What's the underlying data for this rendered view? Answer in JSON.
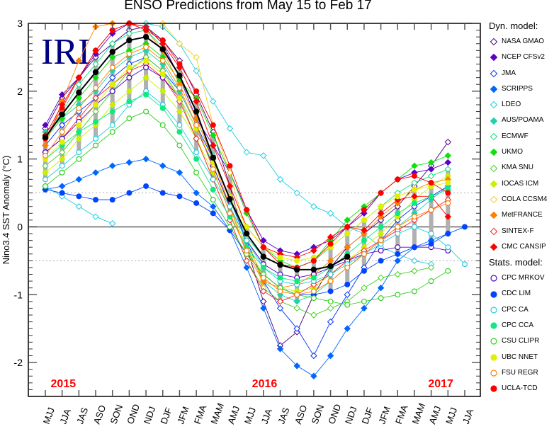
{
  "chart_data": {
    "type": "line",
    "title": "ENSO Predictions from May 15 to Feb 17",
    "xlabel": "",
    "ylabel": "Nino3.4 SST Anomaly (°C)",
    "ylim": [
      -2.5,
      3
    ],
    "yticks": [
      -2,
      -1,
      0,
      1,
      2,
      3
    ],
    "reference_lines": [
      0.5,
      -0.5
    ],
    "watermark": "IRI",
    "categories": [
      "MJJ",
      "JJA",
      "JAS",
      "ASO",
      "SON",
      "OND",
      "NDJ",
      "DJF",
      "JFM",
      "FMA",
      "MAM",
      "AMJ",
      "MJJ",
      "JJA",
      "JAS",
      "ASO",
      "SON",
      "OND",
      "NDJ",
      "DJF",
      "JFM",
      "FMA",
      "MAM",
      "AMJ",
      "MJJ",
      "JJA"
    ],
    "year_labels": [
      {
        "text": "2015",
        "at": 1.5
      },
      {
        "text": "2016",
        "at": 13.5
      },
      {
        "text": "2017",
        "at": 24
      }
    ],
    "average": {
      "name": "Average",
      "color": "#000000",
      "values": [
        1.32,
        1.66,
        1.98,
        2.28,
        2.58,
        2.75,
        2.8,
        2.62,
        2.23,
        1.7,
        1.02,
        0.41,
        -0.1,
        -0.44,
        -0.56,
        -0.63,
        -0.63,
        -0.58,
        -0.44
      ]
    },
    "series": [
      {
        "name": "NASA GMAO",
        "type": "dyn",
        "start": 0,
        "values": [
          1.45,
          1.9,
          2.2,
          2.5,
          2.7,
          2.9,
          2.95,
          2.75,
          2.45,
          1.95,
          1.4,
          0.6,
          -0.3,
          -1.1,
          -1.75,
          -1.55,
          -1.0,
          -0.6,
          -0.3,
          -0.1,
          0.1,
          0.3,
          0.6,
          0.9,
          1.25
        ]
      },
      {
        "name": "NCEP CFSv2",
        "type": "dyn",
        "start": 0,
        "values": [
          1.5,
          1.95,
          2.2,
          2.55,
          2.85,
          3.0,
          2.95,
          2.7,
          2.2,
          1.6,
          1.2,
          0.8,
          0.25,
          -0.2,
          -0.35,
          -0.4,
          -0.3,
          -0.2,
          0.0,
          0.2,
          0.5,
          0.7,
          0.8,
          0.85,
          0.95
        ]
      },
      {
        "name": "JMA",
        "type": "dyn",
        "start": 0,
        "values": [
          1.2,
          1.5,
          1.7,
          1.9,
          2.2,
          2.4,
          2.5,
          2.3,
          2.0,
          1.5,
          1.0,
          0.4,
          -0.2,
          -0.8,
          -1.2,
          -1.5,
          -1.9,
          -1.4,
          -1.0,
          -0.6,
          -0.2,
          0.1,
          0.3,
          0.45,
          0.6
        ]
      },
      {
        "name": "SCRIPPS",
        "type": "dyn",
        "start": 0,
        "values": [
          0.55,
          0.6,
          0.7,
          0.8,
          0.9,
          0.95,
          1.0,
          0.9,
          0.8,
          0.5,
          0.3,
          -0.05,
          -0.6,
          -1.2,
          -1.8,
          -2.05,
          -2.2,
          -1.9,
          -1.5,
          -1.2,
          -0.9,
          -0.5,
          -0.3,
          -0.2,
          -0.1
        ]
      },
      {
        "name": "LDEO",
        "type": "dyn",
        "start": 0,
        "values": [
          0.6,
          0.45,
          0.3,
          0.15,
          0.05
        ]
      },
      {
        "name": "LDEO-b",
        "type": "dyn",
        "start": 6,
        "values": [
          3.0,
          2.95,
          2.7,
          2.3,
          1.85,
          1.45,
          1.1,
          1.05,
          0.7,
          0.5,
          0.3,
          0.2,
          0.0,
          -0.1,
          -0.3,
          -0.4,
          -0.5,
          -0.55
        ]
      },
      {
        "name": "AUS/POAMA",
        "type": "dyn",
        "start": 0,
        "values": [
          1.4,
          1.6,
          1.8,
          2.0,
          2.3,
          2.5,
          2.6,
          2.4,
          2.0,
          1.5,
          0.9,
          0.3,
          -0.3,
          -0.8,
          -1.0,
          -1.1,
          -1.0,
          -0.8,
          -0.6,
          -0.4,
          -0.2,
          0.0,
          0.2,
          0.4,
          0.6
        ]
      },
      {
        "name": "ECMWF",
        "type": "dyn",
        "start": 0,
        "values": [
          1.3,
          1.7,
          2.1,
          2.4,
          2.7,
          2.85,
          2.9,
          2.65,
          2.2,
          1.7,
          1.05,
          0.4,
          -0.15,
          -0.45,
          -0.55,
          -0.6,
          -0.5,
          -0.3,
          -0.1,
          0.1,
          0.3,
          0.5,
          0.65,
          0.75,
          0.85
        ]
      },
      {
        "name": "UKMO",
        "type": "dyn",
        "start": 0,
        "values": [
          1.3,
          1.6,
          1.9,
          2.2,
          2.5,
          2.6,
          2.7,
          2.5,
          2.15,
          1.9,
          1.35,
          0.8,
          0.2,
          -0.3,
          -0.5,
          -0.6,
          -0.5,
          -0.2,
          0.1,
          0.3,
          0.5,
          0.7,
          0.9,
          0.95,
          1.05
        ]
      },
      {
        "name": "KMA SNU",
        "type": "dyn",
        "start": 0,
        "values": [
          0.9,
          1.1,
          1.4,
          1.7,
          2.0,
          2.3,
          2.5,
          2.3,
          1.9,
          1.3,
          0.7,
          0.1,
          -0.5,
          -0.9,
          -1.1,
          -1.2,
          -1.3,
          -1.2,
          -1.1,
          -0.9,
          -0.75,
          -0.7,
          -0.65,
          -0.6
        ]
      },
      {
        "name": "IOCAS ICM",
        "type": "dyn",
        "start": 0,
        "values": [
          0.8,
          1.0,
          1.3,
          1.5,
          1.8,
          2.0,
          2.2,
          2.0,
          1.7,
          1.3,
          0.8,
          0.3,
          -0.3,
          -0.7,
          -0.9,
          -0.95,
          -0.9,
          -0.7,
          -0.5,
          -0.3,
          -0.1,
          0.15,
          0.4,
          0.6,
          0.75
        ]
      },
      {
        "name": "COLA CCSM4",
        "type": "dyn",
        "start": 7,
        "values": [
          3.0,
          2.7,
          2.5,
          1.5,
          0.8,
          -0.1,
          -0.9
        ]
      },
      {
        "name": "MetFRANCE",
        "type": "dyn",
        "start": 0,
        "values": [
          1.2,
          1.85,
          2.45,
          2.95,
          3.0,
          3.0,
          2.9,
          2.6,
          2.1,
          1.6,
          1.0,
          0.3,
          -0.4,
          -0.8,
          -0.9,
          -0.85,
          -0.7,
          -0.5,
          -0.3,
          -0.1,
          0.15,
          0.35,
          0.55,
          0.65,
          0.7
        ]
      },
      {
        "name": "SINTEX-F",
        "type": "dyn",
        "start": 0,
        "values": [
          1.1,
          1.3,
          1.6,
          1.9,
          2.1,
          2.3,
          2.4,
          2.2,
          1.85,
          1.3,
          0.7,
          0.1,
          -0.5,
          -0.95,
          -1.1,
          -1.0,
          -0.85,
          -0.7,
          -0.5,
          -0.35,
          -0.2,
          -0.05,
          0.1,
          0.25,
          0.4
        ]
      },
      {
        "name": "CMC CANSIP",
        "type": "dyn",
        "start": 0,
        "values": [
          1.35,
          1.8,
          2.2,
          2.6,
          2.9,
          3.0,
          2.95,
          2.7,
          2.35,
          1.85,
          1.2,
          0.6,
          0.0,
          -0.3,
          -0.4,
          -0.45,
          -0.35,
          -0.15,
          0.0,
          -0.05,
          0.2,
          0.4,
          0.45,
          0.45,
          0.15
        ]
      },
      {
        "name": "CPC MRKOV",
        "type": "stat",
        "start": 0,
        "values": [
          1.1,
          1.3,
          1.55,
          1.8,
          2.0,
          2.2,
          2.35,
          2.2,
          1.9,
          1.45,
          0.9,
          0.3,
          -0.2,
          -0.55,
          -0.7,
          -0.75,
          -0.7,
          -0.6,
          -0.5,
          -0.4,
          -0.35,
          -0.3,
          -0.3,
          -0.3,
          -0.35
        ]
      },
      {
        "name": "CDC LIM",
        "type": "stat",
        "start": 0,
        "values": [
          0.55,
          0.5,
          0.45,
          0.4,
          0.4,
          0.5,
          0.6,
          0.5,
          0.45,
          0.35,
          0.2,
          -0.05,
          -0.4,
          -0.7,
          -0.9,
          -1.0,
          -1.0,
          -0.95,
          -0.85,
          -0.65,
          -0.5,
          -0.4,
          -0.3,
          -0.25,
          -0.1,
          0.0
        ]
      },
      {
        "name": "CPC CA",
        "type": "stat",
        "start": 0,
        "values": [
          0.7,
          0.9,
          1.1,
          1.3,
          1.5,
          1.8,
          2.0,
          1.8,
          1.5,
          1.1,
          0.7,
          0.3,
          -0.2,
          -0.6,
          -0.8,
          -0.85,
          -0.8,
          -0.7,
          -0.55,
          -0.4,
          -0.25,
          -0.1,
          0.0,
          -0.1,
          -0.3,
          -0.55
        ]
      },
      {
        "name": "CPC CCA",
        "type": "stat",
        "start": 0,
        "values": [
          1.0,
          1.2,
          1.4,
          1.55,
          1.7,
          1.85,
          1.95,
          1.75,
          1.4,
          1.0,
          0.55,
          0.15,
          -0.3,
          -0.6,
          -0.75,
          -0.8,
          -0.75,
          -0.6,
          -0.4,
          -0.2,
          0.0,
          0.2,
          0.35,
          0.45,
          0.55
        ]
      },
      {
        "name": "CSU CLIPR",
        "type": "stat",
        "start": 0,
        "values": [
          0.6,
          0.8,
          1.0,
          1.2,
          1.4,
          1.6,
          1.7,
          1.5,
          1.2,
          0.8,
          0.4,
          0.0,
          -0.4,
          -0.7,
          -0.9,
          -1.0,
          -1.05,
          -1.1,
          -1.15,
          -1.1,
          -1.05,
          -1.0,
          -0.95,
          -0.8,
          -0.65
        ]
      },
      {
        "name": "UBC NNET",
        "type": "stat",
        "start": 0,
        "values": [
          1.0,
          1.25,
          1.5,
          1.8,
          2.1,
          2.35,
          2.45,
          2.25,
          1.9,
          1.45,
          0.95,
          0.45,
          0.0,
          -0.3,
          -0.45,
          -0.5,
          -0.45,
          -0.3,
          -0.1,
          0.1,
          0.3,
          0.45,
          0.55,
          0.6,
          0.65
        ]
      },
      {
        "name": "FSU REGR",
        "type": "stat",
        "start": 0,
        "values": [
          1.05,
          1.4,
          1.75,
          2.05,
          2.35,
          2.55,
          2.65,
          2.45,
          2.05,
          1.5,
          0.85,
          0.2,
          -0.35,
          -0.75,
          -0.95,
          -1.0,
          -0.95,
          -0.8,
          -0.6,
          -0.4,
          -0.2,
          0.0,
          0.15,
          0.25,
          0.35
        ]
      },
      {
        "name": "UCLA-TCD",
        "type": "stat",
        "start": 0,
        "values": [
          1.3,
          1.75,
          2.2,
          2.6,
          2.9,
          3.0,
          2.9,
          2.75,
          2.4,
          2.0,
          1.5,
          0.9,
          0.25,
          -0.3,
          -0.55,
          -0.6,
          -0.5,
          -0.25,
          0.0,
          0.25,
          0.5,
          0.7,
          0.75,
          0.65,
          0.5
        ]
      }
    ],
    "legend": {
      "placement": "right",
      "dyn_header": "Dyn. model:",
      "stat_header": "Stats. model:",
      "dyn": [
        {
          "label": "NASA GMAO",
          "color": "#4b0082",
          "marker": "diamond-open"
        },
        {
          "label": "NCEP CFSv2",
          "color": "#5a00c8",
          "marker": "diamond"
        },
        {
          "label": "JMA",
          "color": "#0033ff",
          "marker": "diamond-open"
        },
        {
          "label": "SCRIPPS",
          "color": "#0066ff",
          "marker": "diamond"
        },
        {
          "label": "LDEO",
          "color": "#22cce0",
          "marker": "diamond-open"
        },
        {
          "label": "AUS/POAMA",
          "color": "#1ed2b0",
          "marker": "diamond"
        },
        {
          "label": "ECMWF",
          "color": "#12e080",
          "marker": "diamond-open"
        },
        {
          "label": "UKMO",
          "color": "#10e010",
          "marker": "diamond"
        },
        {
          "label": "KMA SNU",
          "color": "#44d020",
          "marker": "diamond-open"
        },
        {
          "label": "IOCAS ICM",
          "color": "#c8f000",
          "marker": "diamond"
        },
        {
          "label": "COLA CCSM4",
          "color": "#f0d020",
          "marker": "diamond-open"
        },
        {
          "label": "MetFRANCE",
          "color": "#ff8000",
          "marker": "diamond"
        },
        {
          "label": "SINTEX-F",
          "color": "#ff2020",
          "marker": "diamond-open"
        },
        {
          "label": "CMC CANSIP",
          "color": "#ff0000",
          "marker": "diamond"
        }
      ],
      "stat": [
        {
          "label": "CPC MRKOV",
          "color": "#4b00c8",
          "marker": "circle-open"
        },
        {
          "label": "CDC LIM",
          "color": "#0044ff",
          "marker": "circle"
        },
        {
          "label": "CPC CA",
          "color": "#22cce0",
          "marker": "circle-open"
        },
        {
          "label": "CPC CCA",
          "color": "#12e880",
          "marker": "circle"
        },
        {
          "label": "CSU CLIPR",
          "color": "#30d020",
          "marker": "circle-open"
        },
        {
          "label": "UBC NNET",
          "color": "#e0f000",
          "marker": "circle"
        },
        {
          "label": "FSU REGR",
          "color": "#ff8000",
          "marker": "circle-open"
        },
        {
          "label": "UCLA-TCD",
          "color": "#ff0000",
          "marker": "circle"
        }
      ]
    },
    "colors": {
      "watermark": "#000080",
      "year_label": "#ff0000",
      "range_bar": "#b0b0b0",
      "zero_line": "#606060"
    }
  }
}
